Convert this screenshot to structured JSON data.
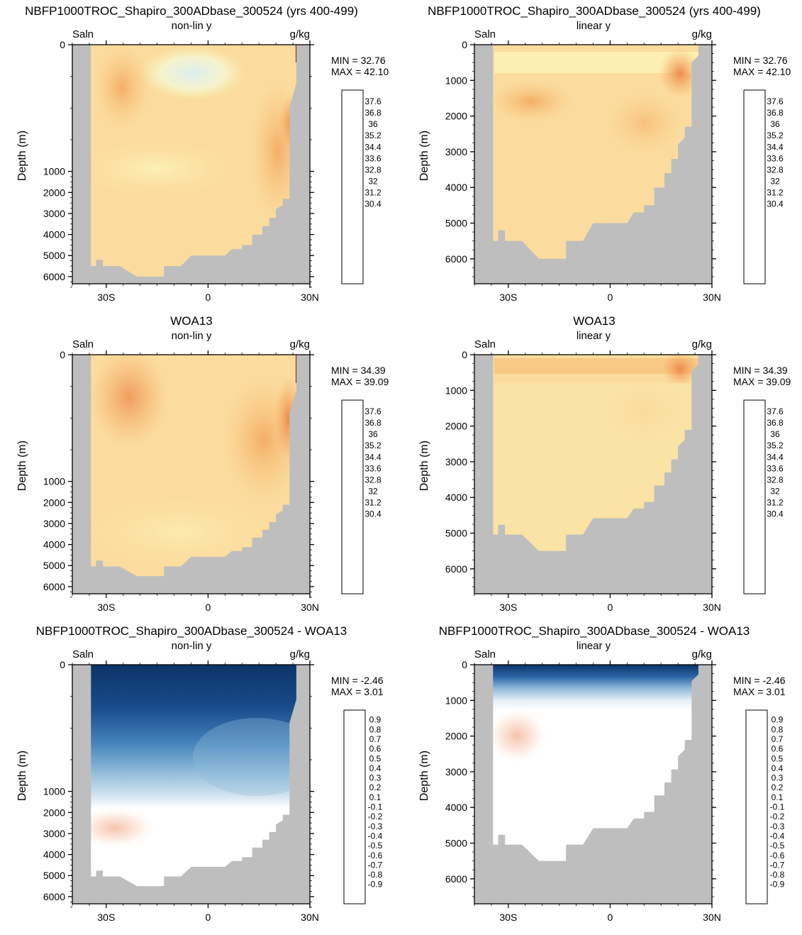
{
  "chart_data": [
    {
      "type": "heatmap",
      "row": 0,
      "col": 0,
      "title": "NBFP1000TROC_Shapiro_300ADbase_300524 (yrs 400-499)",
      "variable": "Saln",
      "yscale_label": "non-lin y",
      "units": "g/kg",
      "ylabel": "Depth (m)",
      "xlim": [
        -40,
        30
      ],
      "ylim": [
        0,
        6700
      ],
      "xticks": [
        "30S",
        "0",
        "30N"
      ],
      "yticks": [
        "0",
        "1000",
        "2000",
        "3000",
        "4000",
        "5000",
        "6000"
      ],
      "min_label": "MIN =  32.76",
      "max_label": "MAX =  42.10",
      "colorbar": [
        "37.6",
        "36.8",
        "36",
        "35.2",
        "34.4",
        "33.6",
        "32.8",
        "32",
        "31.2",
        "30.4"
      ],
      "palette": "salinity",
      "bottom_depth_m": 6000
    },
    {
      "type": "heatmap",
      "row": 0,
      "col": 1,
      "title": "NBFP1000TROC_Shapiro_300ADbase_300524 (yrs 400-499)",
      "variable": "Saln",
      "yscale_label": "linear y",
      "units": "g/kg",
      "ylabel": "Depth (m)",
      "xlim": [
        -40,
        30
      ],
      "ylim": [
        0,
        6700
      ],
      "xticks": [
        "30S",
        "0",
        "30N"
      ],
      "yticks": [
        "0",
        "1000",
        "2000",
        "3000",
        "4000",
        "5000",
        "6000"
      ],
      "min_label": "MIN =  32.76",
      "max_label": "MAX =  42.10",
      "colorbar": [
        "37.6",
        "36.8",
        "36",
        "35.2",
        "34.4",
        "33.6",
        "32.8",
        "32",
        "31.2",
        "30.4"
      ],
      "palette": "salinity",
      "bottom_depth_m": 6000
    },
    {
      "type": "heatmap",
      "row": 1,
      "col": 0,
      "title": "WOA13",
      "variable": "Saln",
      "yscale_label": "non-lin y",
      "units": "g/kg",
      "ylabel": "Depth (m)",
      "xlim": [
        -40,
        30
      ],
      "ylim": [
        0,
        6700
      ],
      "xticks": [
        "30S",
        "0",
        "30N"
      ],
      "yticks": [
        "0",
        "1000",
        "2000",
        "3000",
        "4000",
        "5000",
        "6000"
      ],
      "min_label": "MIN =  34.39",
      "max_label": "MAX =  39.09",
      "colorbar": [
        "37.6",
        "36.8",
        "36",
        "35.2",
        "34.4",
        "33.6",
        "32.8",
        "32",
        "31.2",
        "30.4"
      ],
      "palette": "salinity",
      "bottom_depth_m": 5500
    },
    {
      "type": "heatmap",
      "row": 1,
      "col": 1,
      "title": "WOA13",
      "variable": "Saln",
      "yscale_label": "linear y",
      "units": "g/kg",
      "ylabel": "Depth (m)",
      "xlim": [
        -40,
        30
      ],
      "ylim": [
        0,
        6700
      ],
      "xticks": [
        "30S",
        "0",
        "30N"
      ],
      "yticks": [
        "0",
        "1000",
        "2000",
        "3000",
        "4000",
        "5000",
        "6000"
      ],
      "min_label": "MIN =  34.39",
      "max_label": "MAX =  39.09",
      "colorbar": [
        "37.6",
        "36.8",
        "36",
        "35.2",
        "34.4",
        "33.6",
        "32.8",
        "32",
        "31.2",
        "30.4"
      ],
      "palette": "salinity",
      "bottom_depth_m": 5500
    },
    {
      "type": "heatmap",
      "row": 2,
      "col": 0,
      "title": "NBFP1000TROC_Shapiro_300ADbase_300524 - WOA13",
      "variable": "Saln",
      "yscale_label": "non-lin y",
      "units": "g/kg",
      "ylabel": "Depth (m)",
      "xlim": [
        -40,
        30
      ],
      "ylim": [
        0,
        6700
      ],
      "xticks": [
        "30S",
        "0",
        "30N"
      ],
      "yticks": [
        "0",
        "1000",
        "2000",
        "3000",
        "4000",
        "5000",
        "6000"
      ],
      "min_label": "MIN =  -2.46",
      "max_label": "MAX =   3.01",
      "colorbar": [
        "0.9",
        "0.8",
        "0.7",
        "0.6",
        "0.5",
        "0.4",
        "0.3",
        "0.2",
        "0.1",
        "-0.1",
        "-0.2",
        "-0.3",
        "-0.4",
        "-0.5",
        "-0.6",
        "-0.7",
        "-0.8",
        "-0.9"
      ],
      "palette": "difference",
      "bottom_depth_m": 5500
    },
    {
      "type": "heatmap",
      "row": 2,
      "col": 1,
      "title": "NBFP1000TROC_Shapiro_300ADbase_300524 - WOA13",
      "variable": "Saln",
      "yscale_label": "linear y",
      "units": "g/kg",
      "ylabel": "Depth (m)",
      "xlim": [
        -40,
        30
      ],
      "ylim": [
        0,
        6700
      ],
      "xticks": [
        "30S",
        "0",
        "30N"
      ],
      "yticks": [
        "0",
        "1000",
        "2000",
        "3000",
        "4000",
        "5000",
        "6000"
      ],
      "min_label": "MIN =  -2.46",
      "max_label": "MAX =   3.01",
      "colorbar": [
        "0.9",
        "0.8",
        "0.7",
        "0.6",
        "0.5",
        "0.4",
        "0.3",
        "0.2",
        "0.1",
        "-0.1",
        "-0.2",
        "-0.3",
        "-0.4",
        "-0.5",
        "-0.6",
        "-0.7",
        "-0.8",
        "-0.9"
      ],
      "palette": "difference",
      "bottom_depth_m": 5500
    }
  ],
  "palettes": {
    "salinity": [
      "#6e0a1e",
      "#9c1a23",
      "#c8332b",
      "#df5a3a",
      "#ec8246",
      "#f4a55c",
      "#f8c47e",
      "#fbdc9e",
      "#fdf2b5",
      "#f4f9d8",
      "#dcedf0",
      "#bcdbe9",
      "#97c3df",
      "#6fa3d0",
      "#4f7fbd",
      "#3f5aa6",
      "#33307a"
    ],
    "difference": [
      "#67001f",
      "#9e0f2a",
      "#c43a3a",
      "#d9674f",
      "#e88e6f",
      "#f3b497",
      "#f8d2bd",
      "#fce8db",
      "#ffffff",
      "#ffffff",
      "#e6eff6",
      "#cde0ee",
      "#b1cfe4",
      "#91bcda",
      "#6aa2cc",
      "#4584bc",
      "#2b65a6",
      "#184c8c",
      "#0c3466",
      "#08294f"
    ],
    "land": "#bebebe"
  }
}
